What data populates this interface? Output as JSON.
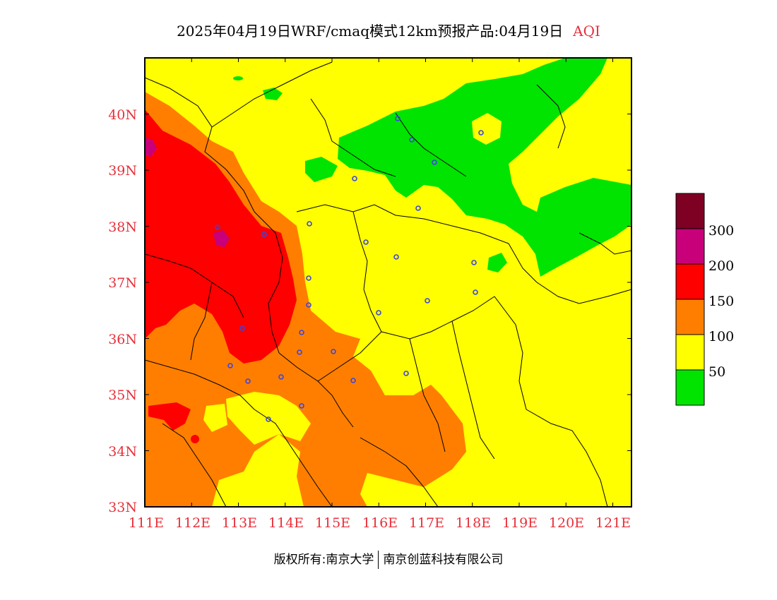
{
  "title": {
    "main": "2025年04月19日WRF/cmaq模式12km预报产品:04月19日",
    "variable": "AQI"
  },
  "map": {
    "lon_range": [
      111,
      121.4
    ],
    "lat_range": [
      33,
      41
    ],
    "x_ticks": [
      "111E",
      "112E",
      "113E",
      "114E",
      "115E",
      "116E",
      "117E",
      "118E",
      "119E",
      "120E",
      "121E"
    ],
    "y_ticks": [
      "33N",
      "34N",
      "35N",
      "36N",
      "37N",
      "38N",
      "39N",
      "40N"
    ]
  },
  "legend": {
    "colors": [
      "#00e400",
      "#ffff00",
      "#ff7e00",
      "#ff0000",
      "#c8007a",
      "#7e0023"
    ],
    "labels": [
      "50",
      "100",
      "150",
      "200",
      "300"
    ]
  },
  "colors": {
    "good": "#00e400",
    "moderate": "#ffff00",
    "sensitive": "#ff7e00",
    "unhealthy": "#ff0000",
    "very_unhealthy": "#c8007a",
    "hazardous": "#7e0023",
    "axis_text": "#e8303a",
    "city_marker": "#3a46e0"
  },
  "footer": {
    "copyright": "版权所有:南京大学",
    "company": "南京创蓝科技有限公司"
  }
}
